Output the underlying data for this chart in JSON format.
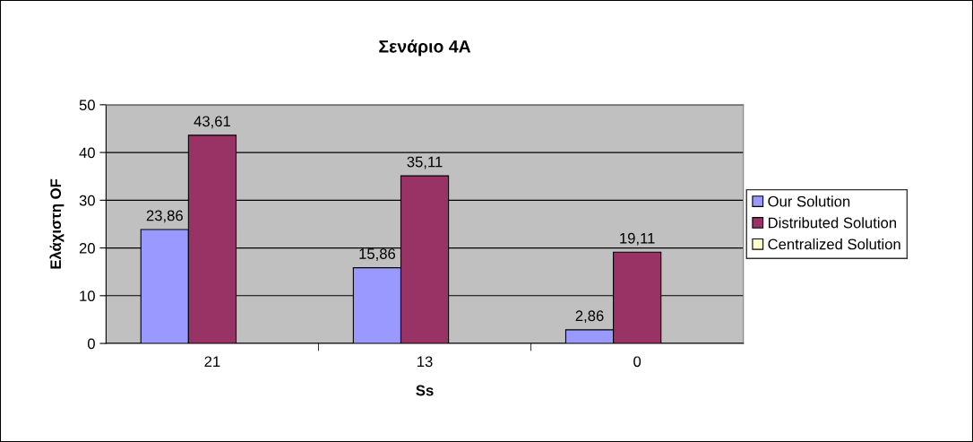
{
  "chart_data": {
    "type": "bar",
    "title": "Σενάριο 4Α",
    "xlabel": "Ss",
    "ylabel": "Ελάχιστη OF",
    "categories": [
      "21",
      "13",
      "0"
    ],
    "series": [
      {
        "name": "Our Solution",
        "color": "#9999ff",
        "values": [
          23.86,
          15.86,
          2.86
        ],
        "value_labels": [
          "23,86",
          "15,86",
          "2,86"
        ]
      },
      {
        "name": "Distributed Solution",
        "color": "#993366",
        "values": [
          43.61,
          35.11,
          19.11
        ],
        "value_labels": [
          "43,61",
          "35,11",
          "19,11"
        ]
      },
      {
        "name": "Centralized Solution",
        "color": "#ffffcc",
        "values": [
          null,
          null,
          null
        ],
        "value_labels": [
          null,
          null,
          null
        ]
      }
    ],
    "ylim": [
      0,
      50
    ],
    "yticks": [
      0,
      10,
      20,
      30,
      40,
      50
    ],
    "grid": "y",
    "legend": "right"
  }
}
